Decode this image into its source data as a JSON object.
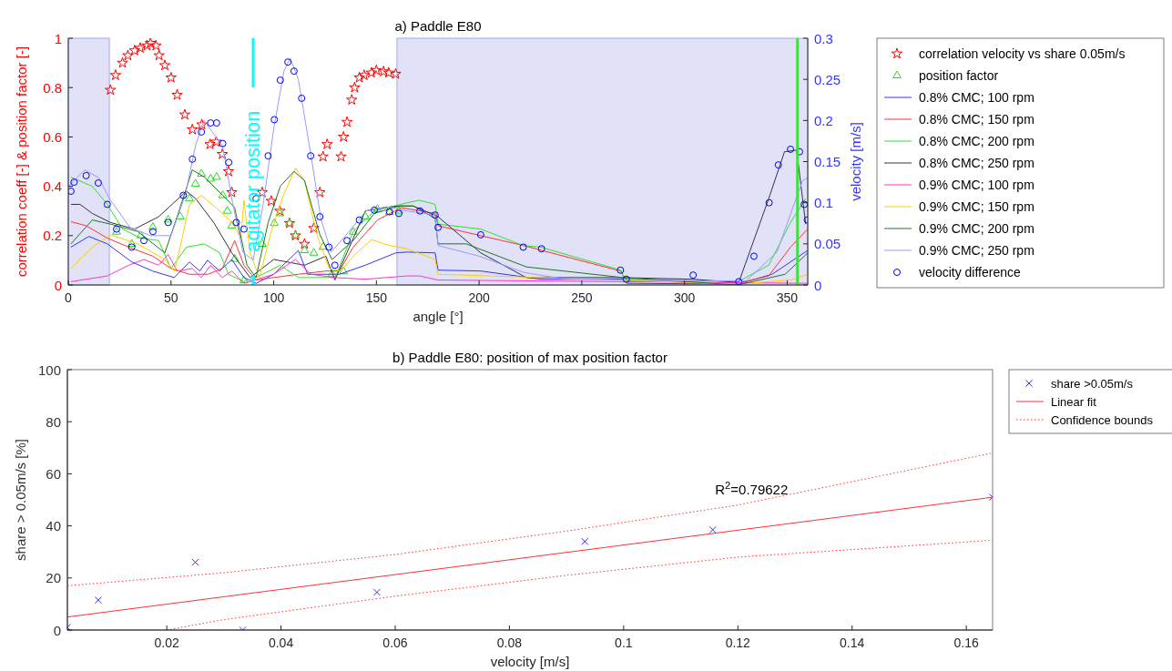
{
  "chart_data": [
    {
      "type": "line",
      "title": "a) Paddle E80",
      "xlabel": "angle [°]",
      "ylabel": "correlation coeff [-] & position factor [-]",
      "y2label": "velocity [m/s]",
      "xlim": [
        0,
        360
      ],
      "ylim": [
        0,
        1
      ],
      "y2lim": [
        0,
        0.3
      ],
      "xticks": [
        0,
        50,
        100,
        150,
        200,
        250,
        300,
        350
      ],
      "yticks": [
        0,
        0.2,
        0.4,
        0.6,
        0.8,
        1
      ],
      "y2ticks": [
        0,
        0.05,
        0.1,
        0.15,
        0.2,
        0.25,
        0.3
      ],
      "legend": "right",
      "grid": false,
      "bands": [
        {
          "axis": "x",
          "from": 0,
          "to": 20,
          "color": "#e1e1f7"
        },
        {
          "axis": "x",
          "from": 160,
          "to": 360,
          "color": "#e1e1f7"
        }
      ],
      "ref_lines": [
        {
          "axis": "x",
          "value": 90,
          "label": "agitator position",
          "color": "#00ffff"
        },
        {
          "axis": "x",
          "value": 355,
          "color": "#44dd44"
        }
      ],
      "series": [
        {
          "name": "correlation velocity vs share 0.05m/s",
          "type": "scatter",
          "marker": "star",
          "color": "#ff0000",
          "x": [
            20.5,
            23,
            26.4,
            29,
            32.3,
            35,
            38.3,
            40,
            42.7,
            44.2,
            47,
            50,
            53,
            56.7,
            60.4,
            65,
            69,
            72,
            75,
            78,
            79.6,
            94.4,
            98.8,
            103,
            107.7,
            110.6,
            115,
            119.5,
            122.5,
            124,
            126,
            132.8,
            134,
            135.7,
            138,
            139.4,
            141.7,
            144,
            147.6,
            150,
            153.5,
            156,
            159.4
          ],
          "values": [
            0.79,
            0.85,
            0.9,
            0.93,
            0.95,
            0.96,
            0.97,
            0.98,
            0.97,
            0.93,
            0.89,
            0.84,
            0.77,
            0.69,
            0.63,
            0.65,
            0.57,
            0.58,
            0.53,
            0.46,
            0.375,
            0.375,
            0.34,
            0.3,
            0.25,
            0.2,
            0.166,
            0.23,
            0.375,
            0.52,
            0.57,
            0.52,
            0.6,
            0.66,
            0.75,
            0.8,
            0.84,
            0.85,
            0.86,
            0.87,
            0.865,
            0.86,
            0.855
          ]
        },
        {
          "name": "position factor",
          "type": "scatter",
          "marker": "triangle",
          "color": "#22dd22",
          "x": [
            23.5,
            30.9,
            35.3,
            41.2,
            48.6,
            54.5,
            59,
            61.9,
            64.8,
            69.3,
            72.2,
            75.2,
            77.4,
            79.6,
            81,
            85.5,
            94.4,
            100.3,
            103,
            107.7,
            110.6,
            115,
            119.5,
            124,
            128.4,
            134,
            138.7,
            144.6,
            150.5,
            156.4,
            160.9
          ],
          "values": [
            0.215,
            0.166,
            0.2,
            0.234,
            0.264,
            0.277,
            0.35,
            0.41,
            0.45,
            0.43,
            0.437,
            0.363,
            0.3,
            0.24,
            0.105,
            0.018,
            0.166,
            0.25,
            0.29,
            0.25,
            0.2,
            0.14,
            0.13,
            0.154,
            0.043,
            0.055,
            0.215,
            0.277,
            0.307,
            0.295,
            0.3
          ]
        },
        {
          "name": "0.8% CMC; 100 rpm",
          "axis": "y2",
          "color": "#3333ff",
          "x": [
            1.3,
            10,
            19,
            30.9,
            41,
            51.6,
            59,
            64,
            67.8,
            73.7,
            79.6,
            85.5,
            91.4,
            100,
            112,
            116.5,
            125,
            132,
            144.6,
            159.4,
            165,
            178.6,
            180,
            200.8,
            230,
            270,
            272,
            326,
            342.6,
            360
          ],
          "values": [
            0.046,
            0.059,
            0.05,
            0.028,
            0.017,
            0.009,
            0.028,
            0.017,
            0.03,
            0.017,
            0.031,
            0.009,
            0.002,
            0.013,
            0.042,
            0.013,
            0.013,
            0.013,
            0.024,
            0.039,
            0.04,
            0.039,
            0.018,
            0.017,
            0.007,
            0.007,
            0.002,
            0.001,
            0.013,
            0.042
          ]
        },
        {
          "name": "0.8% CMC; 150 rpm",
          "axis": "y2",
          "color": "#ff3333",
          "x": [
            1.3,
            8.7,
            19,
            29.4,
            41.2,
            50,
            59,
            68,
            75,
            81,
            85.5,
            91.4,
            100,
            112,
            125.4,
            132,
            138.7,
            150.5,
            162,
            178.6,
            180,
            221.5,
            268.8,
            271.7,
            326,
            341,
            351.6,
            360
          ],
          "values": [
            0.077,
            0.072,
            0.057,
            0.046,
            0.035,
            0.02,
            0.013,
            0.013,
            0.02,
            0.054,
            0.024,
            0.006,
            0.009,
            0.013,
            0.017,
            0.017,
            0.046,
            0.079,
            0.094,
            0.087,
            0.072,
            0.048,
            0.017,
            0.005,
            0.002,
            0.011,
            0.046,
            0.068
          ]
        },
        {
          "name": "0.8% CMC; 200 rpm",
          "axis": "y2",
          "color": "#33dd33",
          "x": [
            1.3,
            11.7,
            19,
            26.4,
            35.3,
            44,
            50,
            57.5,
            66.3,
            73.7,
            78,
            85.5,
            93,
            103.2,
            112,
            130,
            138.7,
            149,
            165,
            171,
            178.6,
            180,
            200.8,
            221.5,
            230,
            269,
            271,
            326,
            341,
            351.6,
            359
          ],
          "values": [
            0.131,
            0.12,
            0.098,
            0.068,
            0.057,
            0.054,
            0.02,
            0.046,
            0.05,
            0.039,
            0.013,
            0.004,
            0.011,
            0.024,
            0.009,
            0.009,
            0.065,
            0.09,
            0.1,
            0.103,
            0.098,
            0.074,
            0.068,
            0.048,
            0.046,
            0.018,
            0.007,
            0.004,
            0.024,
            0.076,
            0.105
          ]
        },
        {
          "name": "0.8% CMC; 250 rpm",
          "axis": "y2",
          "color": "#333344",
          "x": [
            1.3,
            5.7,
            11.7,
            20.5,
            32.3,
            44,
            57.5,
            62,
            70.8,
            79.6,
            88.5,
            100,
            115,
            125.4,
            129.8,
            144.6,
            153.5,
            161,
            168,
            180,
            200.8,
            223,
            268.8,
            304,
            326.4,
            341,
            348.7,
            354.6,
            359
          ],
          "values": [
            0.098,
            0.098,
            0.087,
            0.076,
            0.068,
            0.083,
            0.114,
            0.105,
            0.076,
            0.039,
            0.009,
            0.031,
            0.024,
            0.035,
            0.006,
            0.09,
            0.094,
            0.096,
            0.096,
            0.083,
            0.039,
            0.009,
            0.009,
            0.007,
            0.003,
            0.105,
            0.162,
            0.164,
            0.074
          ]
        },
        {
          "name": "0.9% CMC; 100 rpm",
          "axis": "y2",
          "color": "#ff33cc",
          "x": [
            1.3,
            19,
            29.4,
            36.8,
            44,
            48.6,
            53,
            60.4,
            64.8,
            69.3,
            75,
            79.6,
            85.5,
            100,
            110.6,
            118,
            130,
            144.6,
            165,
            171,
            180,
            269,
            360
          ],
          "values": [
            0.004,
            0.011,
            0.024,
            0.031,
            0.024,
            0.037,
            0.017,
            0.02,
            0.009,
            0.024,
            0.009,
            0.017,
            0.002,
            0.013,
            0.031,
            0.013,
            0.009,
            0.007,
            0.011,
            0.011,
            0.006,
            0.004,
            0.002
          ]
        },
        {
          "name": "0.9% CMC; 150 rpm",
          "axis": "y2",
          "color": "#ffcc00",
          "x": [
            1.3,
            11.7,
            20.5,
            33.8,
            47,
            51.6,
            54.5,
            59,
            64.8,
            73.7,
            79.6,
            84,
            85.5,
            88.5,
            93,
            98.8,
            104.7,
            110.6,
            115,
            121,
            127,
            132.8,
            138.7,
            147.6,
            156.5,
            165,
            178.6,
            180,
            230,
            326,
            351.6,
            360
          ],
          "values": [
            0.02,
            0.046,
            0.061,
            0.05,
            0.031,
            0.017,
            0.046,
            0.098,
            0.109,
            0.09,
            0.076,
            0.057,
            0.103,
            0.039,
            0.009,
            0.065,
            0.109,
            0.142,
            0.127,
            0.061,
            0.02,
            0.017,
            0.035,
            0.055,
            0.048,
            0.044,
            0.031,
            0.013,
            0.009,
            0.001,
            0.006,
            0.013
          ]
        },
        {
          "name": "0.9% CMC; 200 rpm",
          "axis": "y2",
          "color": "#227722",
          "x": [
            1.3,
            11.7,
            20.5,
            33.8,
            47,
            53,
            60.4,
            66.3,
            75.2,
            81,
            87,
            91.4,
            97.3,
            103.2,
            109.9,
            115,
            122.5,
            128.4,
            138.7,
            149,
            161,
            168,
            178.6,
            180,
            193.7,
            223,
            270,
            326,
            349,
            360
          ],
          "values": [
            0.05,
            0.079,
            0.074,
            0.065,
            0.039,
            0.083,
            0.14,
            0.131,
            0.109,
            0.094,
            0.024,
            0.009,
            0.076,
            0.12,
            0.138,
            0.127,
            0.061,
            0.031,
            0.054,
            0.087,
            0.096,
            0.096,
            0.081,
            0.05,
            0.05,
            0.022,
            0.009,
            0,
            0.013,
            0.039
          ]
        },
        {
          "name": "0.9% CMC; 250 rpm",
          "axis": "y2",
          "color": "#9999ff",
          "x": [
            0,
            8,
            15,
            20,
            30,
            40,
            50,
            57,
            62,
            66,
            75,
            80,
            85,
            90,
            95,
            100,
            105,
            108,
            112,
            118,
            123,
            128,
            135,
            145,
            155,
            165,
            178.6,
            180,
            200,
            222,
            240,
            270,
            300,
            330,
            345,
            357.5,
            360
          ],
          "values": [
            0.12,
            0.14,
            0.13,
            0.105,
            0.07,
            0.06,
            0.06,
            0.11,
            0.17,
            0.2,
            0.17,
            0.1,
            0.04,
            0.03,
            0.1,
            0.19,
            0.26,
            0.276,
            0.25,
            0.16,
            0.08,
            0.04,
            0.06,
            0.09,
            0.095,
            0.09,
            0.085,
            0.048,
            0.035,
            0.015,
            0.008,
            0.006,
            0.005,
            0.005,
            0.04,
            0.127,
            0.13
          ]
        },
        {
          "name": "velocity difference",
          "type": "scatter",
          "marker": "circle",
          "axis": "y2",
          "color": "#0000ff",
          "x": [
            1.3,
            2.8,
            8.7,
            14.6,
            19,
            23.5,
            30.9,
            36.8,
            41.2,
            48.6,
            56,
            60.4,
            64.8,
            69.3,
            72.2,
            75.2,
            78.1,
            81.8,
            85.5,
            91.4,
            97.3,
            100.3,
            103.2,
            106.9,
            109.9,
            113.6,
            118,
            122.5,
            126.9,
            129.8,
            135.7,
            141.7,
            149,
            156.4,
            160.9,
            171.2,
            178.6,
            180,
            200.8,
            221.5,
            230.4,
            268.8,
            271.7,
            304.2,
            326.4,
            333.8,
            341.2,
            345.7,
            351.6,
            356,
            358.3,
            359.8
          ],
          "values": [
            0.114,
            0.125,
            0.133,
            0.124,
            0.098,
            0.068,
            0.046,
            0.054,
            0.065,
            0.076,
            0.109,
            0.153,
            0.186,
            0.197,
            0.197,
            0.172,
            0.149,
            0.076,
            0.068,
            0.105,
            0.157,
            0.201,
            0.249,
            0.271,
            0.26,
            0.227,
            0.157,
            0.083,
            0.046,
            0.024,
            0.054,
            0.079,
            0.091,
            0.089,
            0.087,
            0.09,
            0.085,
            0.07,
            0.061,
            0.046,
            0.044,
            0.018,
            0.007,
            0.012,
            0.004,
            0.035,
            0.1,
            0.146,
            0.165,
            0.162,
            0.098,
            0.079
          ]
        }
      ]
    },
    {
      "type": "scatter",
      "title": "b) Paddle E80: position of max position factor",
      "xlabel": "velocity [m/s]",
      "ylabel": "share > 0.05m/s [%]",
      "xlim": [
        0.0026,
        0.1646
      ],
      "ylim": [
        0,
        100
      ],
      "xticks": [
        0.02,
        0.04,
        0.06,
        0.08,
        0.1,
        0.12,
        0.14,
        0.16
      ],
      "yticks": [
        0,
        20,
        40,
        60,
        80,
        100
      ],
      "legend": "right",
      "grid": false,
      "annotations": [
        "R$^{2}$=0.79622"
      ],
      "series": [
        {
          "name": "share >0.05m/s",
          "marker": "cross",
          "color": "#3333ff",
          "x": [
            0.0026,
            0.008,
            0.025,
            0.0333,
            0.0568,
            0.0932,
            0.1156,
            0.1646
          ],
          "values": [
            1,
            11.5,
            26,
            0,
            14.5,
            34,
            38.5,
            51
          ]
        },
        {
          "name": "Linear fit",
          "type": "line",
          "line_style": "solid",
          "color": "#ff3333",
          "x": [
            0.0026,
            0.1646
          ],
          "values": [
            5,
            51
          ]
        },
        {
          "name": "Confidence bounds",
          "type": "line",
          "line_style": "dotted",
          "color": "#ff3333",
          "x": [
            0.0026,
            0.03,
            0.06,
            0.09,
            0.12,
            0.1646
          ],
          "values": [
            17,
            22,
            29,
            38,
            48,
            68
          ]
        },
        {
          "type": "line",
          "line_style": "dotted",
          "color": "#ff3333",
          "x": [
            0.02,
            0.03,
            0.06,
            0.09,
            0.12,
            0.1646
          ],
          "values": [
            0,
            4,
            13,
            21,
            28,
            34.5
          ]
        }
      ]
    }
  ]
}
